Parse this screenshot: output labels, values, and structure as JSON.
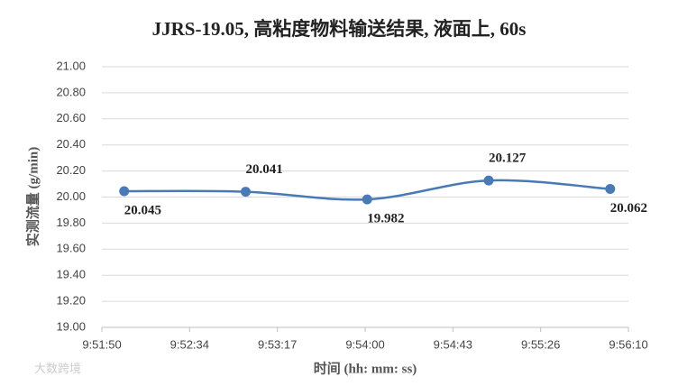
{
  "chart_data": {
    "type": "line",
    "title": "JJRS-19.05, 高粘度物料输送结果, 液面上, 60s",
    "x_label": "时间 (hh: mm: ss)",
    "y_label": "实测流量 (g/min)",
    "watermark": "大数跨境",
    "x": [
      35521,
      35581,
      35641,
      35701,
      35761
    ],
    "series": [
      {
        "name": "实测流量",
        "color": "#4a7ab5",
        "values": [
          20.045,
          20.041,
          19.982,
          20.127,
          20.062
        ]
      }
    ],
    "xlim": [
      35510,
      35770
    ],
    "xticks": [
      {
        "value": 35510,
        "label": "9:51:50"
      },
      {
        "value": 35553.33,
        "label": "9:52:34"
      },
      {
        "value": 35596.67,
        "label": "9:53:17"
      },
      {
        "value": 35640,
        "label": "9:54:00"
      },
      {
        "value": 35683.33,
        "label": "9:54:43"
      },
      {
        "value": 35726.67,
        "label": "9:55:26"
      },
      {
        "value": 35770,
        "label": "9:56:10"
      }
    ],
    "ylim": [
      19,
      21
    ],
    "yticks": [
      {
        "value": 19,
        "label": "19.00"
      },
      {
        "value": 19.2,
        "label": "19.20"
      },
      {
        "value": 19.4,
        "label": "19.40"
      },
      {
        "value": 19.6,
        "label": "19.60"
      },
      {
        "value": 19.8,
        "label": "19.80"
      },
      {
        "value": 20,
        "label": "20.00"
      },
      {
        "value": 20.2,
        "label": "20.20"
      },
      {
        "value": 20.4,
        "label": "20.40"
      },
      {
        "value": 20.6,
        "label": "20.60"
      },
      {
        "value": 20.8,
        "label": "20.80"
      },
      {
        "value": 21,
        "label": "21.00"
      }
    ],
    "grid": true,
    "smooth": true
  }
}
